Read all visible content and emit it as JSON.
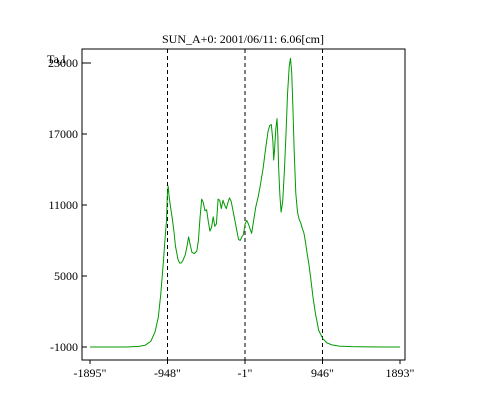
{
  "chart_data": {
    "type": "line",
    "title": "SUN_A+0: 2001/06/11: 6.06[cm]",
    "ylabel": "Ta,I",
    "xlim": [
      -1895,
      1893
    ],
    "ylim": [
      -1000,
      24000
    ],
    "x_tick_labels": [
      "-1895\"",
      "-948\"",
      "-1\"",
      "946\"",
      "1893\""
    ],
    "x_tick_values": [
      -1895,
      -948,
      -1,
      946,
      1893
    ],
    "y_tick_labels": [
      "23000",
      "17000",
      "11000",
      "5000",
      "-1000"
    ],
    "y_tick_values": [
      23000,
      17000,
      11000,
      5000,
      -1000
    ],
    "markers_x": [
      -948,
      -1,
      946
    ],
    "line_color": "#009900",
    "series": [
      {
        "values": [
          [
            -1895,
            -1000
          ],
          [
            -1450,
            -1000
          ],
          [
            -1300,
            -950
          ],
          [
            -1220,
            -850
          ],
          [
            -1150,
            -500
          ],
          [
            -1100,
            300
          ],
          [
            -1060,
            1500
          ],
          [
            -1030,
            3500
          ],
          [
            -1000,
            6000
          ],
          [
            -980,
            8000
          ],
          [
            -960,
            9700
          ],
          [
            -950,
            11800
          ],
          [
            -940,
            12600
          ],
          [
            -930,
            11800
          ],
          [
            -910,
            10800
          ],
          [
            -890,
            9900
          ],
          [
            -870,
            8800
          ],
          [
            -850,
            7500
          ],
          [
            -820,
            6400
          ],
          [
            -800,
            6100
          ],
          [
            -780,
            6100
          ],
          [
            -760,
            6300
          ],
          [
            -730,
            6800
          ],
          [
            -710,
            7500
          ],
          [
            -690,
            8300
          ],
          [
            -670,
            7600
          ],
          [
            -650,
            7000
          ],
          [
            -620,
            6900
          ],
          [
            -590,
            7100
          ],
          [
            -570,
            8000
          ],
          [
            -550,
            10000
          ],
          [
            -530,
            11500
          ],
          [
            -510,
            11200
          ],
          [
            -490,
            10500
          ],
          [
            -470,
            10600
          ],
          [
            -450,
            9600
          ],
          [
            -430,
            8800
          ],
          [
            -410,
            9100
          ],
          [
            -390,
            10000
          ],
          [
            -370,
            9200
          ],
          [
            -350,
            9400
          ],
          [
            -330,
            11500
          ],
          [
            -310,
            11400
          ],
          [
            -290,
            10700
          ],
          [
            -270,
            11400
          ],
          [
            -250,
            11000
          ],
          [
            -230,
            10700
          ],
          [
            -210,
            11200
          ],
          [
            -190,
            11600
          ],
          [
            -170,
            11300
          ],
          [
            -150,
            10600
          ],
          [
            -130,
            9900
          ],
          [
            -100,
            8800
          ],
          [
            -80,
            8100
          ],
          [
            -60,
            8000
          ],
          [
            -40,
            8300
          ],
          [
            -20,
            8500
          ],
          [
            0,
            9400
          ],
          [
            20,
            9700
          ],
          [
            40,
            9400
          ],
          [
            60,
            9000
          ],
          [
            80,
            8600
          ],
          [
            100,
            9500
          ],
          [
            130,
            10800
          ],
          [
            160,
            11700
          ],
          [
            190,
            12800
          ],
          [
            220,
            14100
          ],
          [
            250,
            15700
          ],
          [
            280,
            17200
          ],
          [
            300,
            17700
          ],
          [
            320,
            17800
          ],
          [
            340,
            16400
          ],
          [
            350,
            14800
          ],
          [
            360,
            15600
          ],
          [
            375,
            17400
          ],
          [
            390,
            18300
          ],
          [
            400,
            16900
          ],
          [
            410,
            14200
          ],
          [
            425,
            11800
          ],
          [
            440,
            10400
          ],
          [
            460,
            11300
          ],
          [
            480,
            13900
          ],
          [
            500,
            17000
          ],
          [
            520,
            20500
          ],
          [
            540,
            22800
          ],
          [
            555,
            23400
          ],
          [
            570,
            22200
          ],
          [
            585,
            19000
          ],
          [
            600,
            15500
          ],
          [
            620,
            12000
          ],
          [
            640,
            10400
          ],
          [
            660,
            9800
          ],
          [
            680,
            9500
          ],
          [
            700,
            9000
          ],
          [
            720,
            8600
          ],
          [
            740,
            7800
          ],
          [
            760,
            6800
          ],
          [
            780,
            6000
          ],
          [
            800,
            4900
          ],
          [
            830,
            3200
          ],
          [
            860,
            1800
          ],
          [
            900,
            400
          ],
          [
            950,
            -300
          ],
          [
            1000,
            -650
          ],
          [
            1060,
            -820
          ],
          [
            1150,
            -920
          ],
          [
            1300,
            -970
          ],
          [
            1500,
            -990
          ],
          [
            1893,
            -1000
          ]
        ]
      }
    ]
  }
}
